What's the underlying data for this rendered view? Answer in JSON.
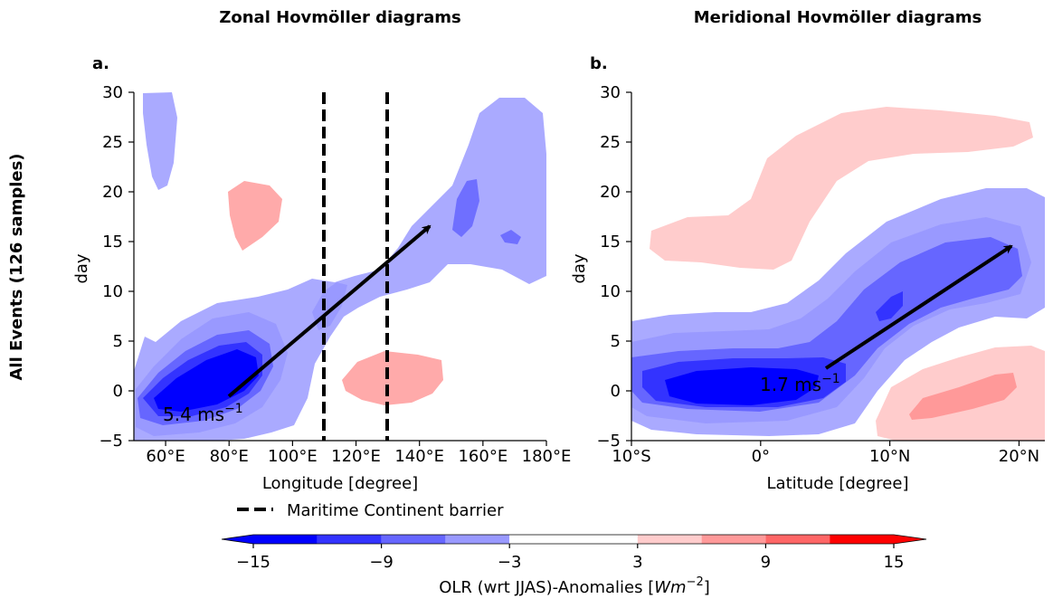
{
  "figure": {
    "row_label": "All Events (126 samples)",
    "colorbar": {
      "label": "OLR (wrt JJAS)-Anomalies [",
      "label_unit": "Wm",
      "label_exp": "−2",
      "label_close": "]",
      "ticks": [
        "−15",
        "−9",
        "−3",
        "3",
        "9",
        "15"
      ],
      "levels": [
        -15,
        -12,
        -9,
        -6,
        -3,
        3,
        6,
        9,
        12,
        15
      ],
      "colors": [
        "#0000ff",
        "#3333ff",
        "#6666ff",
        "#9999ff",
        "#ffffff",
        "#ffcccc",
        "#ff9999",
        "#ff6666",
        "#ff0000"
      ]
    },
    "legend": {
      "label": "Maritime Continent barrier"
    }
  },
  "chart_data": [
    {
      "type": "heatmap",
      "title": "Zonal Hovmöller diagrams",
      "panel_label": "a.",
      "xlabel": "Longitude [degree]",
      "ylabel": "day",
      "xlim": [
        50,
        180
      ],
      "ylim": [
        -5,
        30
      ],
      "xticks": [
        "60°E",
        "80°E",
        "100°E",
        "120°E",
        "140°E",
        "160°E",
        "180°E"
      ],
      "yticks": [
        "−5",
        "0",
        "5",
        "10",
        "15",
        "20",
        "25",
        "30"
      ],
      "barrier_lines": [
        110,
        130
      ],
      "arrow": {
        "from": [
          80,
          -1
        ],
        "to": [
          145,
          17
        ],
        "label": "5.4 ms",
        "label_exp": "−1"
      }
    },
    {
      "type": "heatmap",
      "title": "Meridional Hovmöller diagrams",
      "panel_label": "b.",
      "xlabel": "Latitude [degree]",
      "ylabel": "day",
      "xlim": [
        -10,
        22
      ],
      "ylim": [
        -5,
        30
      ],
      "xticks": [
        "10°S",
        "0°",
        "10°N",
        "20°N"
      ],
      "yticks": [
        "−5",
        "0",
        "5",
        "10",
        "15",
        "20",
        "25",
        "30"
      ],
      "arrow": {
        "from": [
          5,
          2
        ],
        "to": [
          20,
          15
        ],
        "label": "1.7 ms",
        "label_exp": "−1"
      }
    }
  ]
}
